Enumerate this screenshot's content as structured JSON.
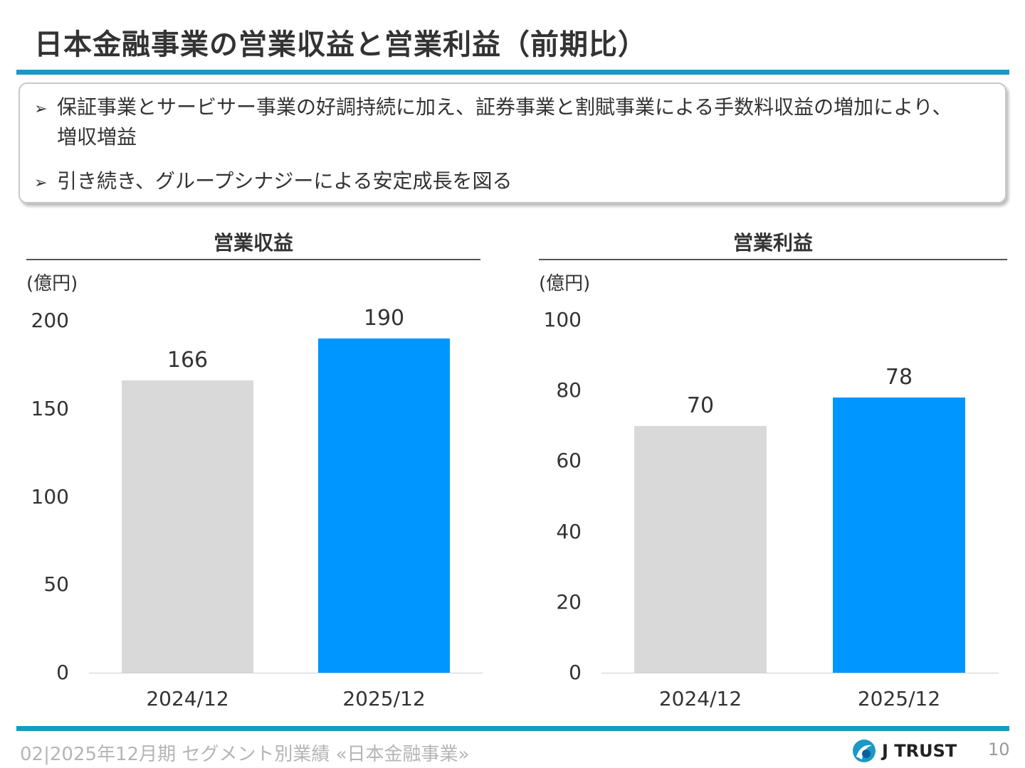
{
  "title": "日本金融事業の営業収益と営業利益（前期比）",
  "summary": {
    "bullets": [
      "保証事業とサービサー事業の好調持続に加え、証券事業と割賦事業による手数料収益の増加により、",
      "引き続き、グループシナジーによる安定成長を図る"
    ],
    "bullet1_cont": "増収増益",
    "arrow": "➢"
  },
  "colors": {
    "accent": "#1a98c6",
    "prior": "#d9d9d9",
    "current": "#0096ff"
  },
  "chart_data": [
    {
      "type": "bar",
      "title": "営業収益",
      "ylabel": "(億円)",
      "categories": [
        "2024/12",
        "2025/12"
      ],
      "values": [
        166,
        190
      ],
      "ylim": [
        0,
        200
      ],
      "yticks": [
        "0",
        "50",
        "100",
        "150",
        "200"
      ],
      "grid": false,
      "colors": [
        "#d9d9d9",
        "#0096ff"
      ]
    },
    {
      "type": "bar",
      "title": "営業利益",
      "ylabel": "(億円)",
      "categories": [
        "2024/12",
        "2025/12"
      ],
      "values": [
        70,
        78
      ],
      "ylim": [
        0,
        100
      ],
      "yticks": [
        "0",
        "20",
        "40",
        "60",
        "80",
        "100"
      ],
      "grid": false,
      "colors": [
        "#d9d9d9",
        "#0096ff"
      ]
    }
  ],
  "footer": {
    "text": "02|2025年12月期 セグメント別業績 «日本金融事業»",
    "logo": "J TRUST",
    "page": "10"
  }
}
